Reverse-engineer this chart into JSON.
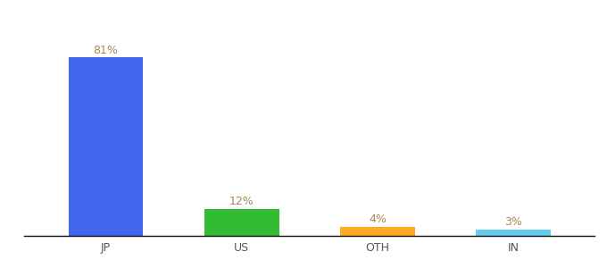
{
  "categories": [
    "JP",
    "US",
    "OTH",
    "IN"
  ],
  "values": [
    81,
    12,
    4,
    3
  ],
  "labels": [
    "81%",
    "12%",
    "4%",
    "3%"
  ],
  "bar_colors": [
    "#4466ee",
    "#33bb33",
    "#ffaa22",
    "#66ccee"
  ],
  "background_color": "#ffffff",
  "label_color": "#aa8855",
  "label_fontsize": 9,
  "xlabel_fontsize": 9,
  "ylim": [
    0,
    95
  ],
  "bar_width": 0.55
}
